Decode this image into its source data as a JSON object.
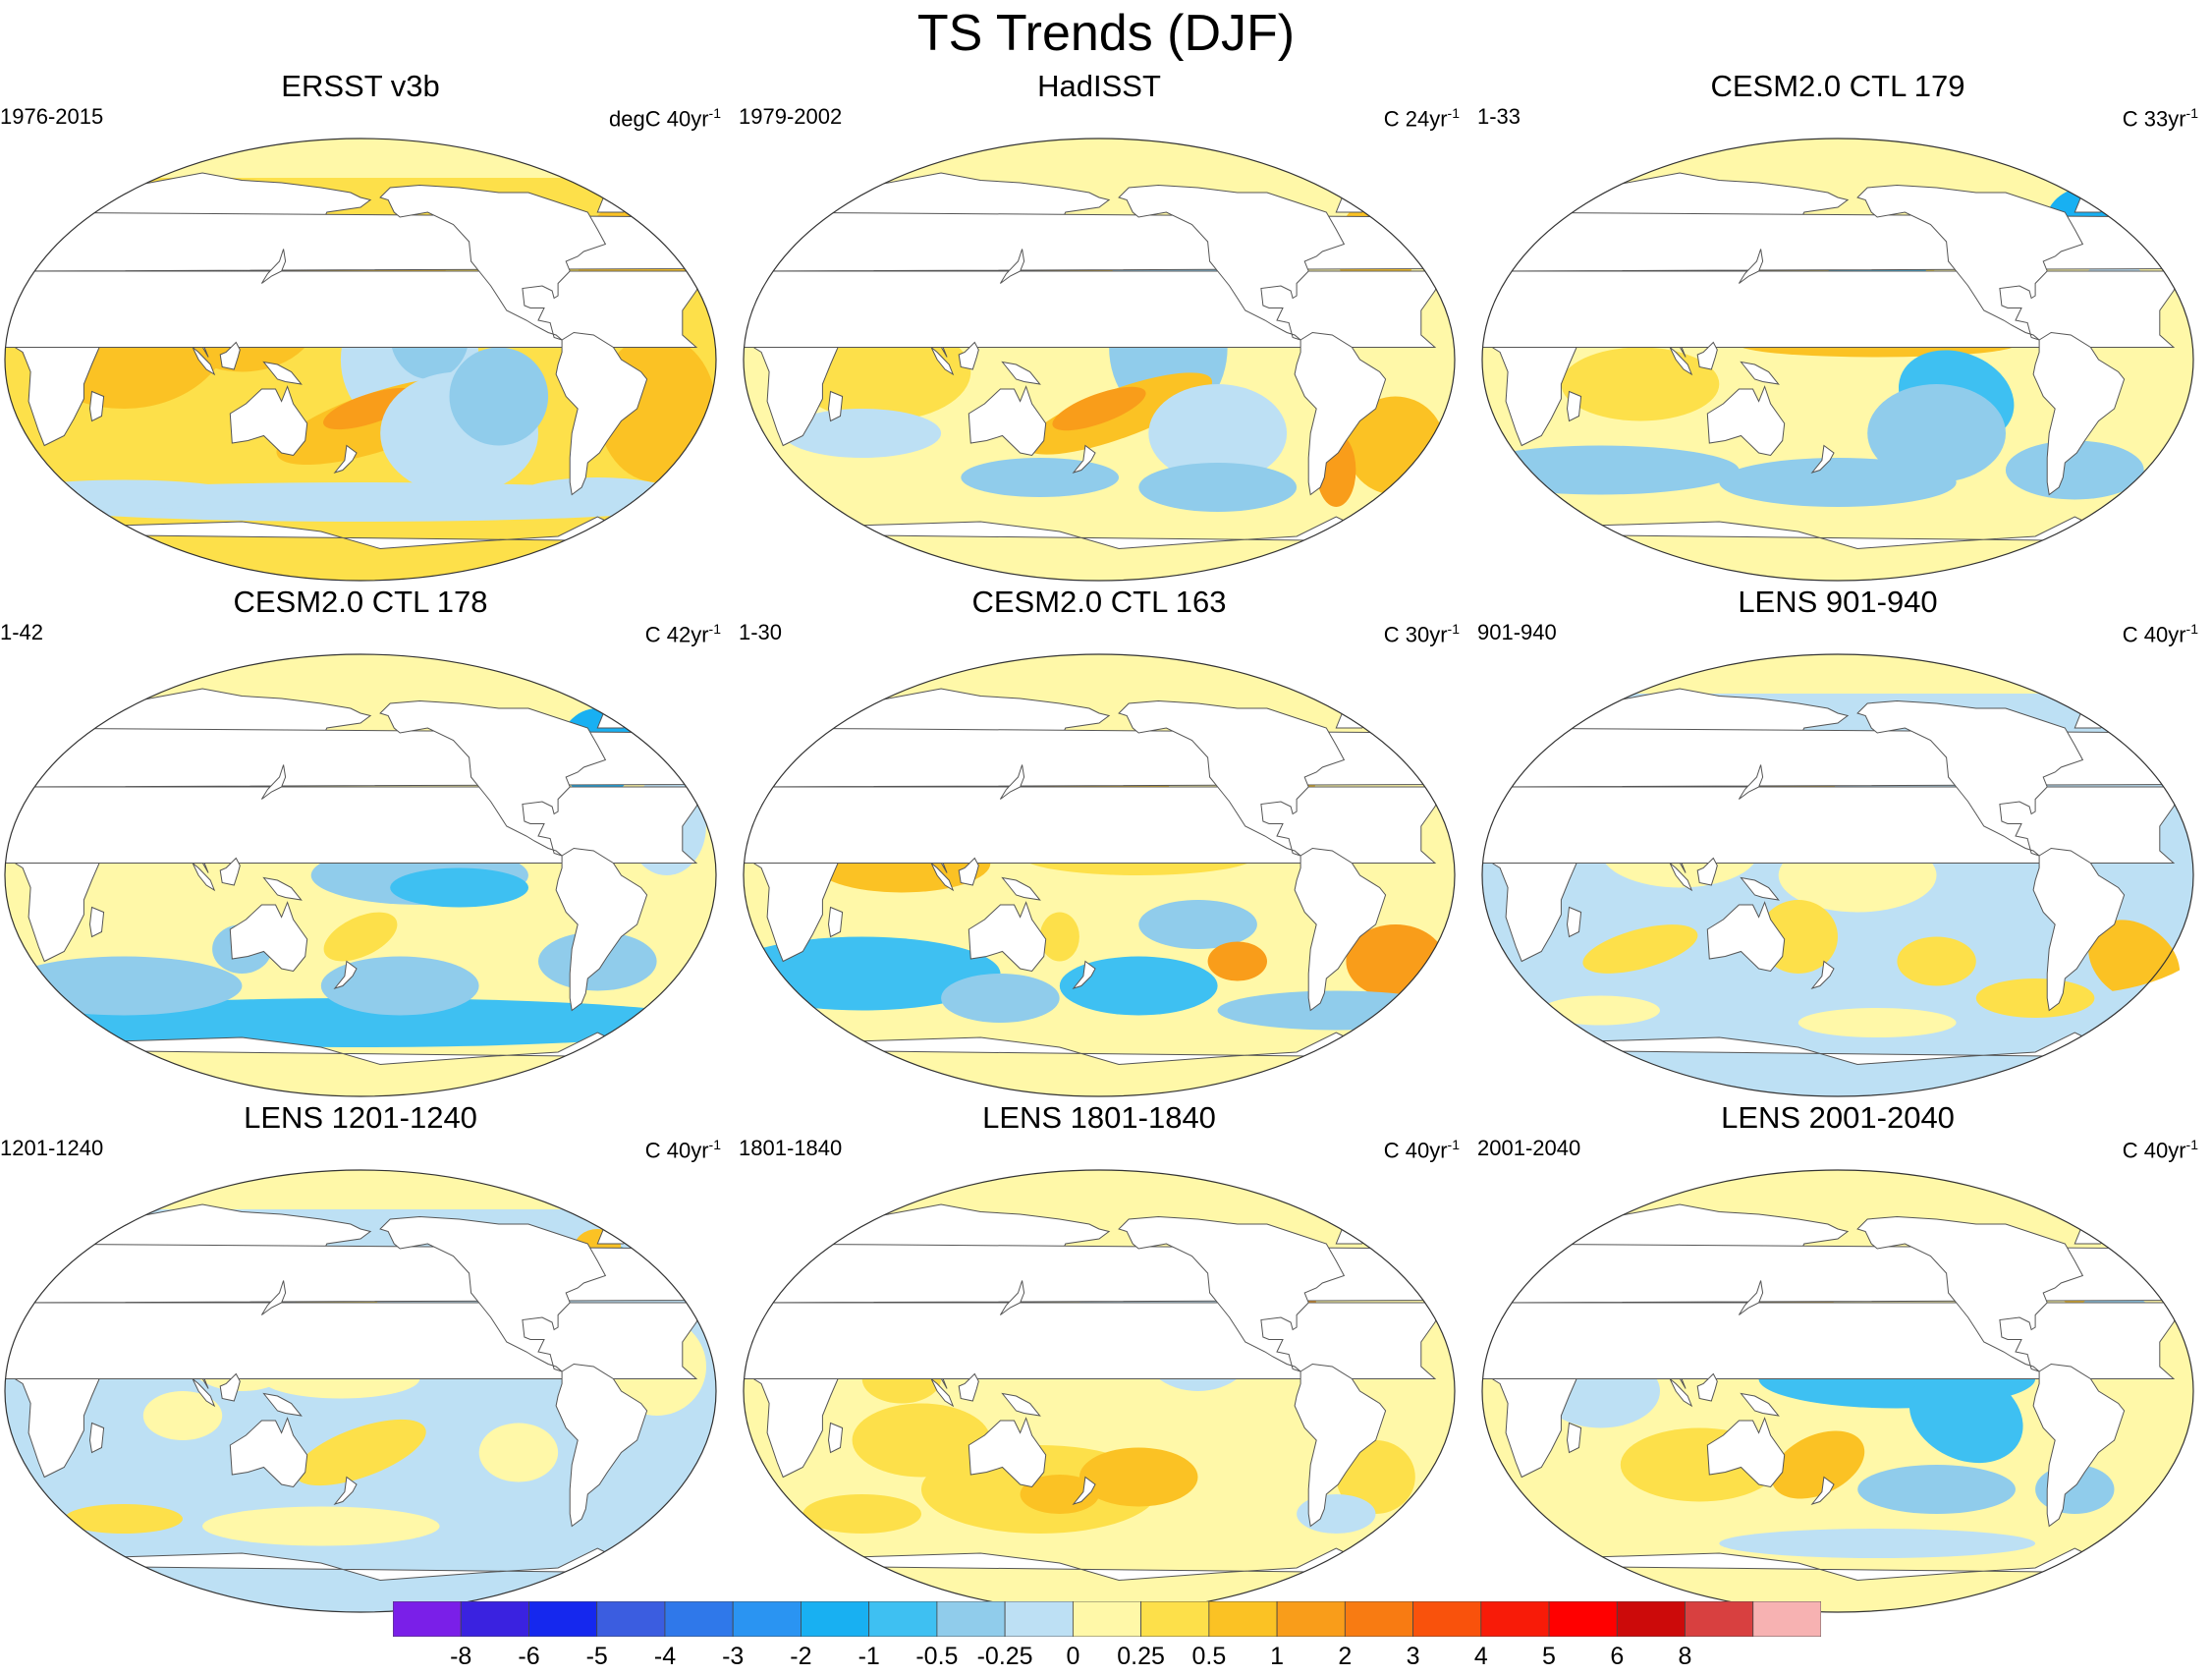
{
  "figure": {
    "title": "TS Trends (DJF)"
  },
  "panels": [
    {
      "title": "ERSST v3b",
      "period": "1976-2015",
      "units": "degC 40yr",
      "units_exp": "-1",
      "pattern": "obs_warm"
    },
    {
      "title": "HadISST",
      "period": "1979-2002",
      "units": "C 24yr",
      "units_exp": "-1",
      "pattern": "obs_mixed"
    },
    {
      "title": "CESM2.0 CTL 179",
      "period": "1-33",
      "units": "C 33yr",
      "units_exp": "-1",
      "pattern": "lanina"
    },
    {
      "title": "CESM2.0 CTL 178",
      "period": "1-42",
      "units": "C 42yr",
      "units_exp": "-1",
      "pattern": "cool_south"
    },
    {
      "title": "CESM2.0 CTL 163",
      "period": "1-30",
      "units": "C 30yr",
      "units_exp": "-1",
      "pattern": "mixed_south"
    },
    {
      "title": "LENS 901-940",
      "period": "901-940",
      "units": "C 40yr",
      "units_exp": "-1",
      "pattern": "weak_mixed"
    },
    {
      "title": "LENS 1201-1240",
      "period": "1201-1240",
      "units": "C 40yr",
      "units_exp": "-1",
      "pattern": "weak_cool"
    },
    {
      "title": "LENS 1801-1840",
      "period": "1801-1840",
      "units": "C 40yr",
      "units_exp": "-1",
      "pattern": "weak_warm"
    },
    {
      "title": "LENS 2001-2040",
      "period": "2001-2040",
      "units": "C 40yr",
      "units_exp": "-1",
      "pattern": "lanina_strong"
    }
  ],
  "colorbar": {
    "colors": [
      "#7a1fe8",
      "#3a22e0",
      "#1528ee",
      "#3b5de0",
      "#2f78ea",
      "#2a94f2",
      "#18b0f2",
      "#3ec0f2",
      "#90cceb",
      "#bde0f4",
      "#fff8a8",
      "#fde04a",
      "#fbc224",
      "#f99d1a",
      "#f87b12",
      "#f9520c",
      "#f81b08",
      "#ff0000",
      "#cc0a0a",
      "#d84040",
      "#f7b2b2"
    ],
    "labels": [
      "-8",
      "-6",
      "-5",
      "-4",
      "-3",
      "-2",
      "-1",
      "-0.5",
      "-0.25",
      "0",
      "0.25",
      "0.5",
      "1",
      "2",
      "3",
      "4",
      "5",
      "6",
      "8"
    ]
  }
}
